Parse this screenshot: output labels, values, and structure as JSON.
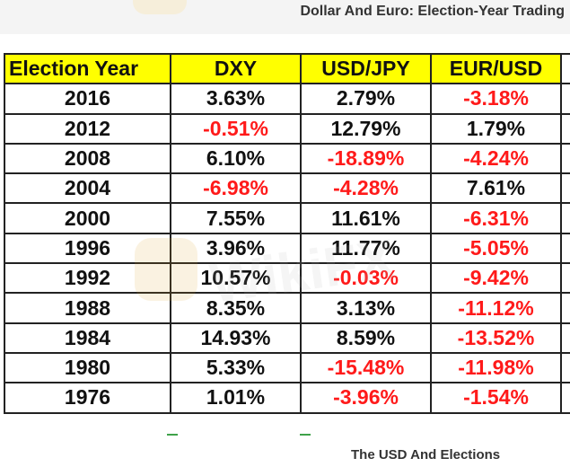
{
  "header": {
    "title": "Dollar And Euro: Election-Year Trading"
  },
  "table": {
    "columns": [
      "Election Year",
      "DXY",
      "USD/JPY",
      "EUR/USD"
    ],
    "rows": [
      {
        "year": "2016",
        "dxy": "3.63%",
        "usdjpy": "2.79%",
        "eurusd": "-3.18%"
      },
      {
        "year": "2012",
        "dxy": "-0.51%",
        "usdjpy": "12.79%",
        "eurusd": "1.79%"
      },
      {
        "year": "2008",
        "dxy": "6.10%",
        "usdjpy": "-18.89%",
        "eurusd": "-4.24%"
      },
      {
        "year": "2004",
        "dxy": "-6.98%",
        "usdjpy": "-4.28%",
        "eurusd": "7.61%"
      },
      {
        "year": "2000",
        "dxy": "7.55%",
        "usdjpy": "11.61%",
        "eurusd": "-6.31%"
      },
      {
        "year": "1996",
        "dxy": "3.96%",
        "usdjpy": "11.77%",
        "eurusd": "-5.05%"
      },
      {
        "year": "1992",
        "dxy": "10.57%",
        "usdjpy": "-0.03%",
        "eurusd": "-9.42%"
      },
      {
        "year": "1988",
        "dxy": "8.35%",
        "usdjpy": "3.13%",
        "eurusd": "-11.12%"
      },
      {
        "year": "1984",
        "dxy": "14.93%",
        "usdjpy": "8.59%",
        "eurusd": "-13.52%"
      },
      {
        "year": "1980",
        "dxy": "5.33%",
        "usdjpy": "-15.48%",
        "eurusd": "-11.98%"
      },
      {
        "year": "1976",
        "dxy": "1.01%",
        "usdjpy": "-3.96%",
        "eurusd": "-1.54%"
      }
    ]
  },
  "footer": {
    "caption": "The USD And Elections"
  },
  "watermark": {
    "text": "WikiFX",
    "icon": "wikifx-logo-icon"
  },
  "colors": {
    "header_fill": "#ffff00",
    "negative_text": "#ff1a1a",
    "positive_text": "#111111"
  }
}
